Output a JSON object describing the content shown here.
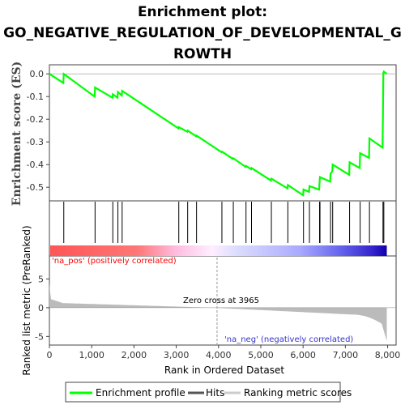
{
  "chart_data": {
    "type": "line",
    "title_lines": [
      "Enrichment plot:",
      "GO_NEGATIVE_REGULATION_OF_DEVELOPMENTAL_G",
      "ROWTH"
    ],
    "xlabel": "Rank in Ordered Dataset",
    "ylabel_top": "Enrichment score (ES)",
    "ylabel_bottom": "Ranked list metric (PreRanked)",
    "xlim": [
      0,
      8200
    ],
    "x_ticks": [
      0,
      1000,
      2000,
      3000,
      4000,
      5000,
      6000,
      7000,
      8000
    ],
    "x_tick_labels": [
      "0",
      "1,000",
      "2,000",
      "3,000",
      "4,000",
      "5,000",
      "6,000",
      "7,000",
      "8,000"
    ],
    "es_ylim": [
      -0.56,
      0.04
    ],
    "es_ticks": [
      0.0,
      -0.1,
      -0.2,
      -0.3,
      -0.4,
      -0.5
    ],
    "es_tick_labels": [
      "0.0",
      "-0.1",
      "-0.2",
      "-0.3",
      "-0.4",
      "-0.5"
    ],
    "metric_ylim": [
      -6.5,
      9
    ],
    "metric_ticks": [
      5,
      0,
      -5
    ],
    "metric_tick_labels": [
      "5",
      "0",
      "-5"
    ],
    "hits": [
      340,
      1080,
      1500,
      1620,
      1720,
      3060,
      3270,
      3480,
      4080,
      4350,
      4650,
      4780,
      5250,
      5640,
      6010,
      6150,
      6390,
      6400,
      6650,
      6700,
      7100,
      7350,
      7570,
      7890,
      7910
    ],
    "enrichment_profile": [
      [
        0,
        0.0
      ],
      [
        330,
        -0.04
      ],
      [
        340,
        0.0
      ],
      [
        1070,
        -0.1
      ],
      [
        1080,
        -0.06
      ],
      [
        1490,
        -0.105
      ],
      [
        1500,
        -0.09
      ],
      [
        1610,
        -0.105
      ],
      [
        1620,
        -0.08
      ],
      [
        1710,
        -0.095
      ],
      [
        1720,
        -0.075
      ],
      [
        3050,
        -0.24
      ],
      [
        3060,
        -0.235
      ],
      [
        3260,
        -0.255
      ],
      [
        3270,
        -0.25
      ],
      [
        3470,
        -0.275
      ],
      [
        3480,
        -0.272
      ],
      [
        4070,
        -0.345
      ],
      [
        4080,
        -0.343
      ],
      [
        4340,
        -0.375
      ],
      [
        4350,
        -0.372
      ],
      [
        4640,
        -0.41
      ],
      [
        4650,
        -0.406
      ],
      [
        4770,
        -0.42
      ],
      [
        4780,
        -0.415
      ],
      [
        5240,
        -0.47
      ],
      [
        5250,
        -0.462
      ],
      [
        5630,
        -0.505
      ],
      [
        5640,
        -0.49
      ],
      [
        6000,
        -0.535
      ],
      [
        6010,
        -0.51
      ],
      [
        6140,
        -0.52
      ],
      [
        6150,
        -0.495
      ],
      [
        6380,
        -0.51
      ],
      [
        6390,
        -0.48
      ],
      [
        6400,
        -0.455
      ],
      [
        6640,
        -0.475
      ],
      [
        6650,
        -0.44
      ],
      [
        6690,
        -0.43
      ],
      [
        6700,
        -0.4
      ],
      [
        7090,
        -0.445
      ],
      [
        7100,
        -0.39
      ],
      [
        7340,
        -0.415
      ],
      [
        7350,
        -0.35
      ],
      [
        7560,
        -0.37
      ],
      [
        7570,
        -0.285
      ],
      [
        7880,
        -0.325
      ],
      [
        7890,
        -0.165
      ],
      [
        7900,
        0.005
      ],
      [
        7910,
        0.01
      ],
      [
        7980,
        0.0
      ]
    ],
    "zero_cross": 3965,
    "legend": [
      {
        "label": "Enrichment profile",
        "color": "#00ff00"
      },
      {
        "label": "Hits",
        "color": "#555555"
      },
      {
        "label": "Ranking metric scores",
        "color": "#cccccc"
      }
    ]
  },
  "annotations": {
    "pos_label": "'na_pos' (positively correlated)",
    "neg_label": "'na_neg' (negatively correlated)",
    "zero_cross_label": "Zero cross at 3965"
  },
  "colors": {
    "profile": "#00ff00",
    "hit": "#000000",
    "pos_text": "#ff0000",
    "neg_text": "#3333cc",
    "metric_fill": "#bbbbbb"
  }
}
